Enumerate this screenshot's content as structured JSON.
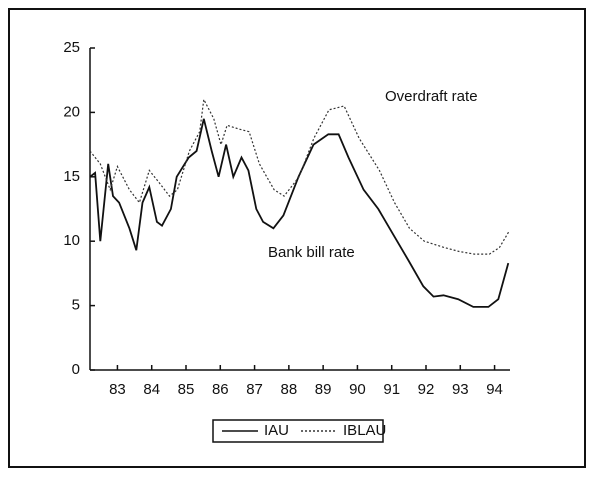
{
  "chart_data": {
    "type": "line",
    "annotations": [
      "Overdraft rate",
      "Bank bill rate"
    ],
    "xlim": [
      82.2,
      94.45
    ],
    "xticks": [
      83,
      84,
      85,
      86,
      87,
      88,
      89,
      90,
      91,
      92,
      93,
      94
    ],
    "ylim": [
      0,
      25
    ],
    "yticks": [
      0,
      5,
      10,
      15,
      20,
      25
    ],
    "grid": false,
    "legend": "bottom",
    "series": [
      {
        "name": "IAU",
        "color": "#111111",
        "style": "solid",
        "x": [
          82.2,
          82.35,
          82.5,
          82.73,
          82.87,
          83.05,
          83.35,
          83.55,
          83.73,
          83.93,
          84.15,
          84.3,
          84.56,
          84.73,
          85.08,
          85.31,
          85.52,
          85.75,
          85.95,
          86.17,
          86.38,
          86.62,
          86.82,
          87.05,
          87.25,
          87.55,
          87.84,
          88.28,
          88.72,
          89.15,
          89.45,
          89.74,
          90.18,
          90.61,
          91.05,
          91.49,
          91.92,
          92.22,
          92.51,
          92.94,
          93.38,
          93.82,
          94.11,
          94.4
        ],
        "values": [
          15,
          15.3,
          10,
          16,
          13.5,
          13,
          11,
          9.3,
          13,
          14.2,
          11.5,
          11.2,
          12.5,
          15,
          16.5,
          17,
          19.5,
          17,
          15,
          17.5,
          15,
          16.5,
          15.5,
          12.5,
          11.5,
          11,
          12,
          15,
          17.5,
          18.3,
          18.3,
          16.5,
          14,
          12.5,
          10.5,
          8.5,
          6.5,
          5.7,
          5.8,
          5.5,
          4.9,
          4.9,
          5.5,
          8.3
        ]
      },
      {
        "name": "IBLAU",
        "color": "#333333",
        "style": "dotted",
        "x": [
          82.2,
          82.5,
          82.79,
          83.0,
          83.35,
          83.64,
          83.93,
          84.23,
          84.52,
          84.75,
          85.1,
          85.4,
          85.52,
          85.81,
          86.02,
          86.2,
          86.55,
          86.84,
          87.14,
          87.57,
          87.86,
          88.3,
          88.73,
          89.17,
          89.61,
          90.05,
          90.64,
          91.08,
          91.52,
          91.95,
          92.54,
          92.97,
          93.41,
          93.85,
          94.14,
          94.43
        ],
        "values": [
          17,
          16,
          14,
          15.8,
          14,
          13,
          15.5,
          14.5,
          13.5,
          14,
          17,
          18.5,
          21,
          19.5,
          17.5,
          19,
          18.7,
          18.5,
          16,
          14,
          13.5,
          15,
          18,
          20.2,
          20.5,
          18,
          15.5,
          13,
          11,
          10,
          9.5,
          9.2,
          9,
          9,
          9.5,
          10.8
        ]
      }
    ]
  }
}
